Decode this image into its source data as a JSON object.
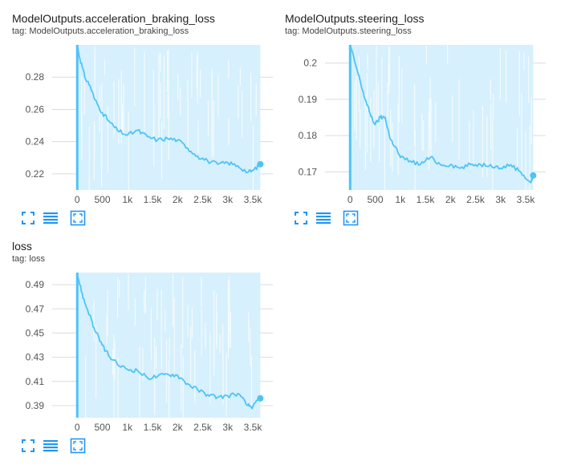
{
  "colors": {
    "line": "#4fc3f7",
    "band": "#d6f0fd",
    "grid": "#dcdcdc",
    "tick": "#555555",
    "icon": "#2196f3"
  },
  "toolbar_icons": [
    "fullscreen-icon",
    "data-table-icon",
    "fit-domain-icon"
  ],
  "charts": [
    {
      "title": "ModelOutputs.acceleration_braking_loss",
      "tag": "tag: ModelOutputs.acceleration_braking_loss",
      "chart_data": {
        "type": "line",
        "title": "ModelOutputs.acceleration_braking_loss",
        "xlabel": "",
        "ylabel": "",
        "xlim": [
          -500,
          3900
        ],
        "ylim": [
          0.21,
          0.3
        ],
        "x_ticks": [
          0,
          500,
          1000,
          1500,
          2000,
          2500,
          3000,
          3500
        ],
        "x_tick_labels": [
          "0",
          "500",
          "1k",
          "1.5k",
          "2k",
          "2.5k",
          "3k",
          "3.5k"
        ],
        "y_ticks": [
          0.22,
          0.24,
          0.26,
          0.28
        ],
        "y_tick_labels": [
          "0.22",
          "0.24",
          "0.26",
          "0.28"
        ],
        "grid": true,
        "series": [
          {
            "x": [
              0,
              50,
              150,
              250,
              350,
              500,
              650,
              800,
              1000,
              1200,
              1400,
              1600,
              1800,
              2000,
              2200,
              2400,
              2600,
              2800,
              3000,
              3200,
              3400,
              3500,
              3650
            ],
            "y": [
              0.3,
              0.292,
              0.28,
              0.275,
              0.266,
              0.258,
              0.252,
              0.247,
              0.244,
              0.247,
              0.243,
              0.241,
              0.242,
              0.241,
              0.236,
              0.231,
              0.228,
              0.226,
              0.227,
              0.225,
              0.221,
              0.222,
              0.226
            ]
          }
        ]
      }
    },
    {
      "title": "ModelOutputs.steering_loss",
      "tag": "tag: ModelOutputs.steering_loss",
      "chart_data": {
        "type": "line",
        "title": "ModelOutputs.steering_loss",
        "xlabel": "",
        "ylabel": "",
        "xlim": [
          -500,
          3900
        ],
        "ylim": [
          0.165,
          0.205
        ],
        "x_ticks": [
          0,
          500,
          1000,
          1500,
          2000,
          2500,
          3000,
          3500
        ],
        "x_tick_labels": [
          "0",
          "500",
          "1k",
          "1.5k",
          "2k",
          "2.5k",
          "3k",
          "3.5k"
        ],
        "y_ticks": [
          0.17,
          0.18,
          0.19,
          0.2
        ],
        "y_tick_labels": [
          "0.17",
          "0.18",
          "0.19",
          "0.2"
        ],
        "grid": true,
        "series": [
          {
            "x": [
              0,
              80,
              200,
              300,
              400,
              500,
              600,
              700,
              800,
              900,
              1000,
              1200,
              1400,
              1600,
              1800,
              2000,
              2200,
              2400,
              2600,
              2800,
              3000,
              3200,
              3400,
              3600,
              3650
            ],
            "y": [
              0.205,
              0.201,
              0.195,
              0.19,
              0.186,
              0.183,
              0.185,
              0.185,
              0.179,
              0.177,
              0.174,
              0.173,
              0.172,
              0.174,
              0.172,
              0.172,
              0.171,
              0.172,
              0.172,
              0.172,
              0.171,
              0.172,
              0.17,
              0.167,
              0.169
            ]
          }
        ]
      }
    },
    {
      "title": "loss",
      "tag": "tag: loss",
      "chart_data": {
        "type": "line",
        "title": "loss",
        "xlabel": "",
        "ylabel": "",
        "xlim": [
          -500,
          3900
        ],
        "ylim": [
          0.38,
          0.5
        ],
        "x_ticks": [
          0,
          500,
          1000,
          1500,
          2000,
          2500,
          3000,
          3500
        ],
        "x_tick_labels": [
          "0",
          "500",
          "1k",
          "1.5k",
          "2k",
          "2.5k",
          "3k",
          "3.5k"
        ],
        "y_ticks": [
          0.39,
          0.41,
          0.43,
          0.45,
          0.47,
          0.49
        ],
        "y_tick_labels": [
          "0.39",
          "0.41",
          "0.43",
          "0.45",
          "0.47",
          "0.49"
        ],
        "grid": true,
        "series": [
          {
            "x": [
              0,
              50,
              150,
              250,
              350,
              500,
              650,
              800,
              1000,
              1200,
              1400,
              1600,
              1800,
              2000,
              2200,
              2400,
              2600,
              2800,
              3000,
              3200,
              3400,
              3500,
              3650
            ],
            "y": [
              0.5,
              0.49,
              0.475,
              0.465,
              0.452,
              0.44,
              0.43,
              0.424,
              0.42,
              0.419,
              0.413,
              0.414,
              0.416,
              0.415,
              0.408,
              0.403,
              0.399,
              0.397,
              0.398,
              0.4,
              0.39,
              0.389,
              0.396
            ]
          }
        ]
      }
    }
  ]
}
